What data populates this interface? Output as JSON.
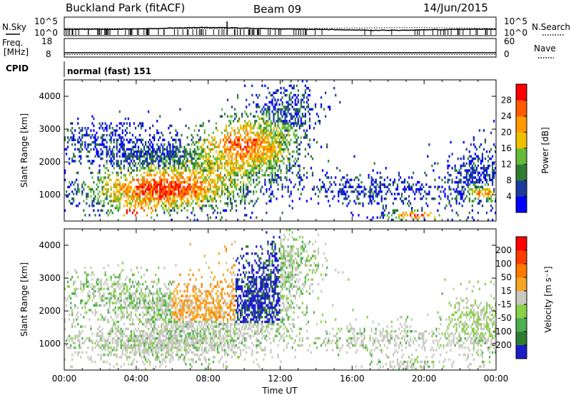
{
  "header": {
    "title": "Buckland Park (fitACF)",
    "beam": "Beam 09",
    "date": "14/Jun/2015"
  },
  "noise_panel": {
    "left_label": "N.Sky",
    "right_label": "N.Search",
    "left_ticks": [
      "10^5",
      "10^0"
    ],
    "right_ticks": [
      "10^5",
      "10^0"
    ]
  },
  "freq_panel": {
    "left_label_1": "Freq.",
    "left_label_2": "[MHz]",
    "right_label": "Nave",
    "left_ticks": [
      "18",
      "8"
    ],
    "right_ticks": [
      "60",
      "0"
    ]
  },
  "cpid": {
    "label": "CPID",
    "mode_text": "normal (fast) 151"
  },
  "chart_data": [
    {
      "type": "heatmap",
      "parameter": "Power",
      "ylabel": "Slant Range [km]",
      "xlabel": "",
      "ylim": [
        200,
        4500
      ],
      "xlim_hours": [
        0,
        24
      ],
      "y_ticks": [
        "1000",
        "2000",
        "3000",
        "4000"
      ],
      "colorbar": {
        "label": "Power [dB]",
        "ticks": [
          "4",
          "8",
          "12",
          "16",
          "20",
          "24",
          "28"
        ],
        "colors": [
          "#0000ff",
          "#1c3c9c",
          "#2e7d32",
          "#66bb3a",
          "#f0c000",
          "#ff9900",
          "#ff5a00",
          "#ff0000"
        ]
      }
    },
    {
      "type": "heatmap",
      "parameter": "Velocity",
      "ylabel": "Slant Range [km]",
      "xlabel": "Time UT",
      "ylim": [
        200,
        4500
      ],
      "xlim_hours": [
        0,
        24
      ],
      "y_ticks": [
        "1000",
        "2000",
        "3000",
        "4000"
      ],
      "x_ticks": [
        "00:00",
        "04:00",
        "08:00",
        "12:00",
        "16:00",
        "20:00",
        "00:00"
      ],
      "colorbar": {
        "label": "Velocity [m s⁻¹]",
        "ticks": [
          "200",
          "100",
          "50",
          "15",
          "-15",
          "-50",
          "-100",
          "-200"
        ],
        "colors": [
          "#1c1cc8",
          "#2e7d32",
          "#4caf50",
          "#8ad04a",
          "#c8c8c0",
          "#f5a623",
          "#ff7a00",
          "#ff3c00",
          "#ff0000"
        ]
      }
    }
  ]
}
